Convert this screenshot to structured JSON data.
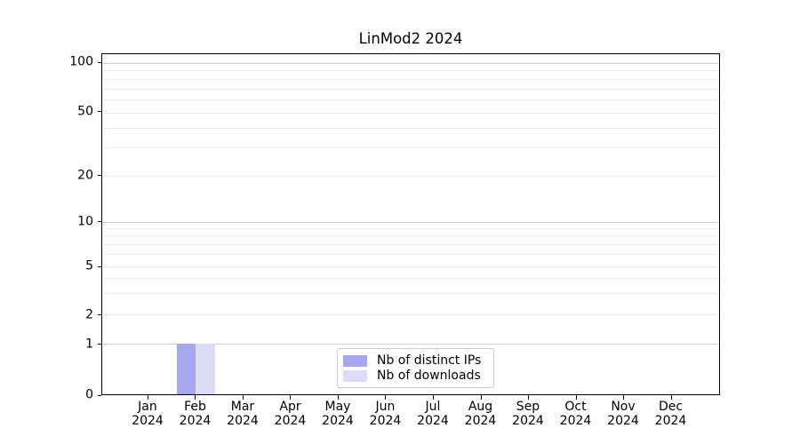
{
  "chart_data": {
    "type": "bar",
    "title": "LinMod2 2024",
    "x_tick_labels": [
      {
        "month": "Jan",
        "year": "2024"
      },
      {
        "month": "Feb",
        "year": "2024"
      },
      {
        "month": "Mar",
        "year": "2024"
      },
      {
        "month": "Apr",
        "year": "2024"
      },
      {
        "month": "May",
        "year": "2024"
      },
      {
        "month": "Jun",
        "year": "2024"
      },
      {
        "month": "Jul",
        "year": "2024"
      },
      {
        "month": "Aug",
        "year": "2024"
      },
      {
        "month": "Sep",
        "year": "2024"
      },
      {
        "month": "Oct",
        "year": "2024"
      },
      {
        "month": "Nov",
        "year": "2024"
      },
      {
        "month": "Dec",
        "year": "2024"
      }
    ],
    "series": [
      {
        "name": "Nb of distinct IPs",
        "color": "#a7a7ef",
        "values": [
          0,
          1,
          0,
          0,
          0,
          0,
          0,
          0,
          0,
          0,
          0,
          0
        ]
      },
      {
        "name": "Nb of downloads",
        "color": "#dcdcf7",
        "values": [
          0,
          1,
          0,
          0,
          0,
          0,
          0,
          0,
          0,
          0,
          0,
          0
        ]
      }
    ],
    "y_axis": {
      "scale": "log-like",
      "ticks": [
        100,
        50,
        20,
        10,
        5,
        2,
        1,
        0
      ],
      "range": [
        0,
        100
      ]
    },
    "grid": {
      "on": true,
      "major_values": [
        100,
        10,
        1
      ],
      "minor_values": [
        90,
        80,
        70,
        60,
        50,
        40,
        30,
        20,
        9,
        8,
        7,
        6,
        5,
        4,
        3,
        2
      ]
    },
    "legend": {
      "position": "lower center"
    }
  }
}
